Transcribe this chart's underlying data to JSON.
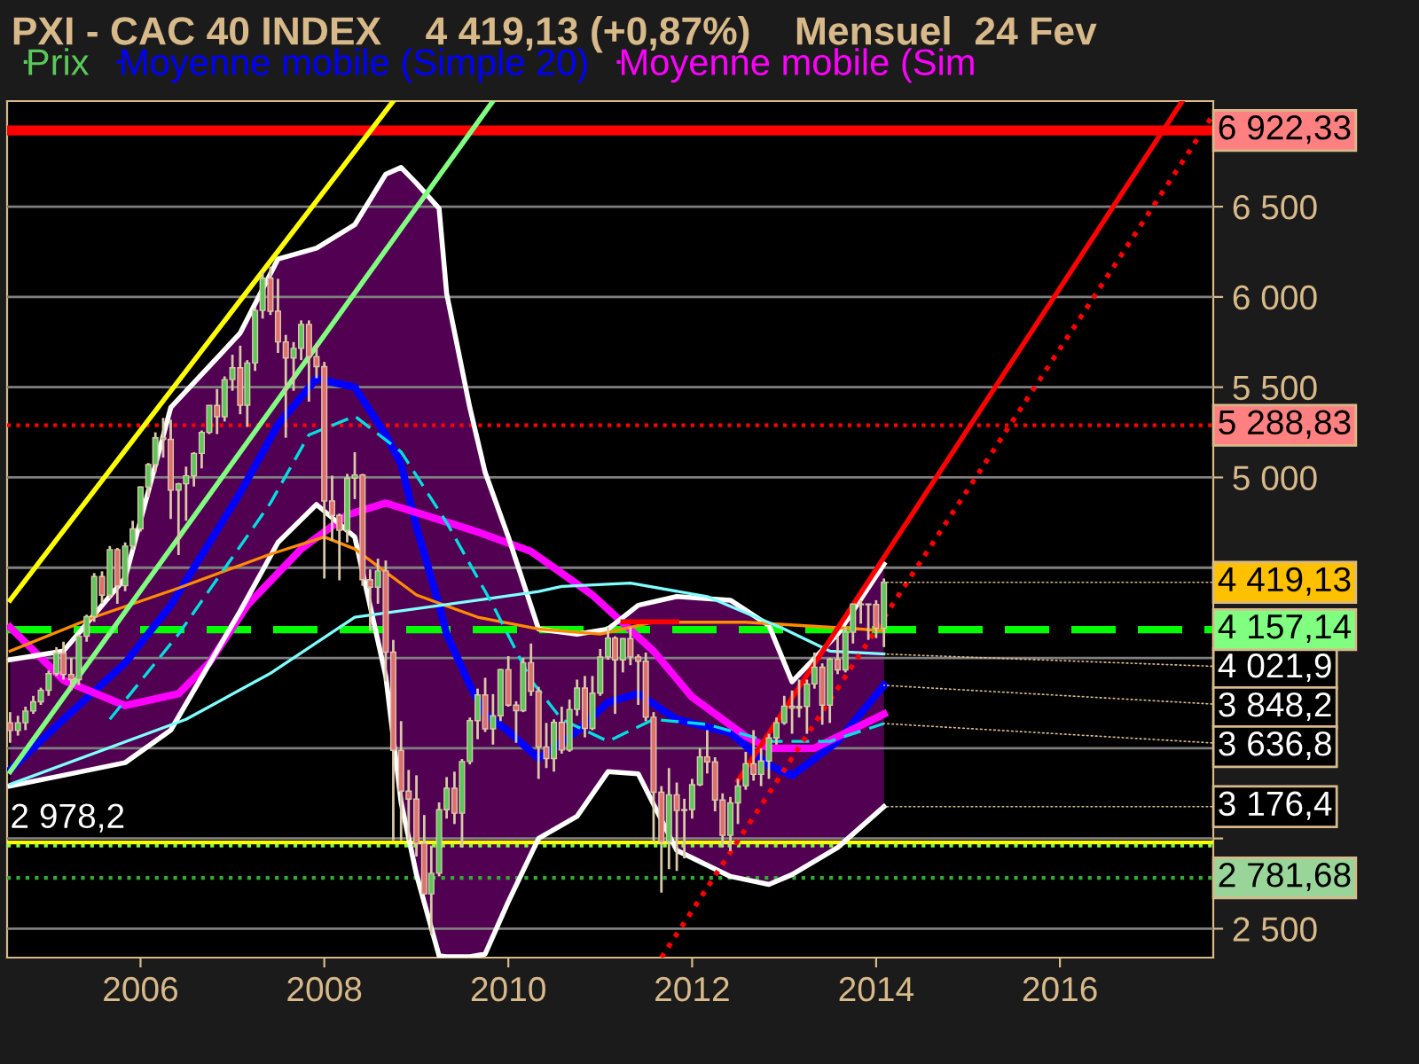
{
  "chart_data": {
    "type": "candlestick",
    "title": "PXI - CAC 40 INDEX    4 419,13 (+0,87%)    Mensuel  24 Fev",
    "xlim": [
      "2004-07-20",
      "2017-09-01"
    ],
    "xticks": [
      "2006",
      "2008",
      "2010",
      "2012",
      "2014",
      "2016"
    ],
    "ylim": [
      2340,
      7085
    ],
    "yticks": [
      {
        "value": 2500,
        "label": "2 500"
      },
      {
        "value": 3000,
        "label": null
      },
      {
        "value": 3500,
        "label": null
      },
      {
        "value": 4000,
        "label": null
      },
      {
        "value": 4500,
        "label": null
      },
      {
        "value": 5000,
        "label": "5 000"
      },
      {
        "value": 5500,
        "label": "5 500"
      },
      {
        "value": 6000,
        "label": "6 000"
      },
      {
        "value": 6500,
        "label": "6 500"
      }
    ],
    "grid": "y",
    "legend": "top left",
    "series": [
      {
        "name": "Prix",
        "x": [
          "2004-08",
          "2004-09",
          "2004-10",
          "2004-11",
          "2004-12",
          "2005-01",
          "2005-02",
          "2005-03",
          "2005-04",
          "2005-05",
          "2005-06",
          "2005-07",
          "2005-08",
          "2005-09",
          "2005-10",
          "2005-11",
          "2005-12",
          "2006-01",
          "2006-02",
          "2006-03",
          "2006-04",
          "2006-05",
          "2006-06",
          "2006-07",
          "2006-08",
          "2006-09",
          "2006-10",
          "2006-11",
          "2006-12",
          "2007-01",
          "2007-02",
          "2007-03",
          "2007-04",
          "2007-05",
          "2007-06",
          "2007-07",
          "2007-08",
          "2007-09",
          "2007-10",
          "2007-11",
          "2007-12",
          "2008-01",
          "2008-02",
          "2008-03",
          "2008-04",
          "2008-05",
          "2008-06",
          "2008-07",
          "2008-08",
          "2008-09",
          "2008-10",
          "2008-11",
          "2008-12",
          "2009-01",
          "2009-02",
          "2009-03",
          "2009-04",
          "2009-05",
          "2009-06",
          "2009-07",
          "2009-08",
          "2009-09",
          "2009-10",
          "2009-11",
          "2009-12",
          "2010-01",
          "2010-02",
          "2010-03",
          "2010-04",
          "2010-05",
          "2010-06",
          "2010-07",
          "2010-08",
          "2010-09",
          "2010-10",
          "2010-11",
          "2010-12",
          "2011-01",
          "2011-02",
          "2011-03",
          "2011-04",
          "2011-05",
          "2011-06",
          "2011-07",
          "2011-08",
          "2011-09",
          "2011-10",
          "2011-11",
          "2011-12",
          "2012-01",
          "2012-02",
          "2012-03",
          "2012-04",
          "2012-05",
          "2012-06",
          "2012-07",
          "2012-08",
          "2012-09",
          "2012-10",
          "2012-11",
          "2012-12",
          "2013-01",
          "2013-02",
          "2013-03",
          "2013-04",
          "2013-05",
          "2013-06",
          "2013-07",
          "2013-08",
          "2013-09",
          "2013-10",
          "2013-11",
          "2013-12",
          "2014-01",
          "2014-02"
        ],
        "ohlc": [
          [
            3641,
            3700,
            3530,
            3598
          ],
          [
            3598,
            3680,
            3570,
            3641
          ],
          [
            3641,
            3730,
            3600,
            3706
          ],
          [
            3706,
            3790,
            3690,
            3757
          ],
          [
            3757,
            3835,
            3740,
            3821
          ],
          [
            3821,
            3930,
            3790,
            3913
          ],
          [
            3913,
            4060,
            3900,
            4027
          ],
          [
            4027,
            4090,
            3880,
            3908
          ],
          [
            3908,
            4000,
            3820,
            3880
          ],
          [
            3880,
            4130,
            3850,
            4120
          ],
          [
            4120,
            4240,
            4090,
            4229
          ],
          [
            4229,
            4470,
            4200,
            4451
          ],
          [
            4451,
            4480,
            4300,
            4348
          ],
          [
            4348,
            4620,
            4330,
            4600
          ],
          [
            4600,
            4610,
            4300,
            4400
          ],
          [
            4400,
            4640,
            4370,
            4620
          ],
          [
            4620,
            4760,
            4600,
            4715
          ],
          [
            4715,
            4950,
            4700,
            4947
          ],
          [
            4947,
            5080,
            4890,
            5071
          ],
          [
            5071,
            5250,
            5030,
            5220
          ],
          [
            5220,
            5330,
            5110,
            5211
          ],
          [
            5211,
            5320,
            4770,
            4930
          ],
          [
            4930,
            4970,
            4570,
            4965
          ],
          [
            4965,
            5060,
            4760,
            5009
          ],
          [
            5009,
            5140,
            4950,
            5133
          ],
          [
            5133,
            5260,
            5050,
            5250
          ],
          [
            5250,
            5400,
            5240,
            5399
          ],
          [
            5399,
            5490,
            5240,
            5336
          ],
          [
            5336,
            5560,
            5310,
            5542
          ],
          [
            5542,
            5680,
            5480,
            5608
          ],
          [
            5608,
            5730,
            5350,
            5400
          ],
          [
            5400,
            5650,
            5280,
            5634
          ],
          [
            5634,
            5940,
            5590,
            5925
          ],
          [
            5925,
            6140,
            5880,
            6104
          ],
          [
            6104,
            6168,
            5900,
            5921
          ],
          [
            5921,
            6100,
            5690,
            5751
          ],
          [
            5751,
            5790,
            5220,
            5662
          ],
          [
            5662,
            5750,
            5480,
            5715
          ],
          [
            5715,
            5870,
            5650,
            5848
          ],
          [
            5848,
            5870,
            5420,
            5670
          ],
          [
            5670,
            5740,
            5550,
            5614
          ],
          [
            5614,
            5640,
            4440,
            4870
          ],
          [
            4870,
            5010,
            4650,
            4790
          ],
          [
            4790,
            4800,
            4430,
            4707
          ],
          [
            4707,
            5020,
            4640,
            4996
          ],
          [
            4996,
            5140,
            4880,
            5014
          ],
          [
            5014,
            5020,
            4400,
            4434
          ],
          [
            4434,
            4490,
            4150,
            4392
          ],
          [
            4392,
            4550,
            4300,
            4482
          ],
          [
            4482,
            4540,
            3870,
            4032
          ],
          [
            4032,
            4100,
            2990,
            3488
          ],
          [
            3488,
            3650,
            2990,
            3262
          ],
          [
            3262,
            3380,
            2990,
            3218
          ],
          [
            3218,
            3350,
            2900,
            2973
          ],
          [
            2973,
            3130,
            2690,
            2693
          ],
          [
            2693,
            2960,
            2465,
            2807
          ],
          [
            2807,
            3200,
            2790,
            3159
          ],
          [
            3159,
            3340,
            3110,
            3278
          ],
          [
            3278,
            3370,
            3080,
            3140
          ],
          [
            3140,
            3440,
            2950,
            3426
          ],
          [
            3426,
            3670,
            3410,
            3653
          ],
          [
            3653,
            3830,
            3550,
            3795
          ],
          [
            3795,
            3890,
            3590,
            3607
          ],
          [
            3607,
            3800,
            3520,
            3680
          ],
          [
            3680,
            3940,
            3650,
            3936
          ],
          [
            3936,
            4010,
            3730,
            3739
          ],
          [
            3739,
            3760,
            3530,
            3708
          ],
          [
            3708,
            4000,
            3700,
            3974
          ],
          [
            3974,
            4080,
            3790,
            3816
          ],
          [
            3816,
            3840,
            3330,
            3507
          ],
          [
            3507,
            3640,
            3390,
            3443
          ],
          [
            3443,
            3660,
            3370,
            3643
          ],
          [
            3643,
            3730,
            3470,
            3490
          ],
          [
            3490,
            3770,
            3480,
            3715
          ],
          [
            3715,
            3880,
            3680,
            3833
          ],
          [
            3833,
            3900,
            3560,
            3610
          ],
          [
            3610,
            3900,
            3600,
            3805
          ],
          [
            3805,
            4050,
            3790,
            4005
          ],
          [
            4005,
            4170,
            3990,
            4110
          ],
          [
            4110,
            4120,
            3690,
            3989
          ],
          [
            3989,
            4110,
            3920,
            4107
          ],
          [
            4107,
            4170,
            3960,
            4006
          ],
          [
            4006,
            4020,
            3740,
            3982
          ],
          [
            3982,
            4030,
            3650,
            3672
          ],
          [
            3672,
            3700,
            2980,
            3256
          ],
          [
            3256,
            3290,
            2700,
            2982
          ],
          [
            2982,
            3390,
            2830,
            3242
          ],
          [
            3242,
            3310,
            2820,
            3155
          ],
          [
            3155,
            3220,
            2890,
            3160
          ],
          [
            3160,
            3330,
            3110,
            3298
          ],
          [
            3298,
            3500,
            3290,
            3452
          ],
          [
            3452,
            3600,
            3360,
            3424
          ],
          [
            3424,
            3450,
            3150,
            3213
          ],
          [
            3213,
            3250,
            2950,
            3017
          ],
          [
            3017,
            3230,
            2930,
            3197
          ],
          [
            3197,
            3330,
            3080,
            3291
          ],
          [
            3291,
            3480,
            3270,
            3414
          ],
          [
            3414,
            3600,
            3320,
            3355
          ],
          [
            3355,
            3500,
            3290,
            3429
          ],
          [
            3429,
            3580,
            3330,
            3557
          ],
          [
            3557,
            3670,
            3520,
            3641
          ],
          [
            3641,
            3790,
            3630,
            3733
          ],
          [
            3733,
            3820,
            3580,
            3723
          ],
          [
            3723,
            3880,
            3670,
            3731
          ],
          [
            3731,
            3880,
            3580,
            3856
          ],
          [
            3856,
            4030,
            3830,
            3949
          ],
          [
            3949,
            3970,
            3630,
            3739
          ],
          [
            3739,
            4000,
            3640,
            3993
          ],
          [
            3993,
            4120,
            3910,
            3934
          ],
          [
            3934,
            4170,
            3920,
            4143
          ],
          [
            4143,
            4300,
            4080,
            4299
          ],
          [
            4299,
            4320,
            4190,
            4295
          ],
          [
            4295,
            4300,
            4100,
            4296
          ],
          [
            4296,
            4320,
            4110,
            4165
          ],
          [
            4165,
            4440,
            4060,
            4419.13
          ]
        ]
      },
      {
        "name": "Moyenne mobile (Simple 20)",
        "type": "line",
        "color": "#0000ff",
        "x": [
          "2004-08",
          "2005-03",
          "2005-11",
          "2006-05",
          "2007-02",
          "2007-07",
          "2007-12",
          "2008-05",
          "2008-09",
          "2008-11",
          "2009-01",
          "2009-04",
          "2009-05",
          "2009-08",
          "2009-10",
          "2010-01",
          "2010-05",
          "2010-10",
          "2011-02",
          "2011-06",
          "2011-11",
          "2012-06",
          "2012-11",
          "2013-02",
          "2013-08",
          "2014-02"
        ],
        "values": [
          3380,
          3660,
          3972,
          4292,
          4915,
          5292,
          5547,
          5500,
          5236,
          5075,
          4726,
          4292,
          4132,
          3849,
          3689,
          3594,
          3443,
          3594,
          3755,
          3802,
          3660,
          3585,
          3406,
          3349,
          3538,
          3848.2
        ],
        "upper": [
          3990,
          4038,
          4443,
          5387,
          5800,
          6210,
          6270,
          6400,
          6680,
          6717,
          6630,
          6490,
          6019,
          5387,
          5028,
          4670,
          4160,
          4132,
          4160,
          4292,
          4340,
          4320,
          4180,
          3868,
          4132,
          4520
        ],
        "lower": [
          3290,
          3350,
          3420,
          3600,
          4260,
          4640,
          4850,
          4670,
          3900,
          3200,
          2800,
          2350,
          2345,
          2345,
          2360,
          2650,
          3000,
          3123,
          3370,
          3358,
          2934,
          2790,
          2745,
          2800,
          2950,
          3176.4
        ]
      },
      {
        "name": "Moyenne mobile (Sim",
        "type": "line",
        "color": "#ff00ff",
        "x": [
          "2004-08",
          "2005-03",
          "2005-11",
          "2006-06",
          "2006-10",
          "2007-03",
          "2007-10",
          "2008-04",
          "2008-09",
          "2009-02",
          "2009-09",
          "2010-04",
          "2010-12",
          "2011-08",
          "2012-01",
          "2012-08",
          "2012-11",
          "2013-05",
          "2014-02"
        ],
        "values": [
          4170,
          3877,
          3736,
          3802,
          3972,
          4292,
          4604,
          4792,
          4858,
          4792,
          4698,
          4590,
          4349,
          4038,
          3783,
          3566,
          3500,
          3500,
          3689
        ]
      },
      {
        "type": "line",
        "color": "#ffffff",
        "x": [
          "2004-08",
          "2005-03",
          "2005-11",
          "2006-05",
          "2007-02",
          "2007-07",
          "2007-12",
          "2008-05",
          "2008-09",
          "2008-11",
          "2009-01",
          "2009-04",
          "2009-05",
          "2009-08",
          "2009-10",
          "2010-01",
          "2010-05",
          "2010-10",
          "2011-02",
          "2011-06",
          "2011-11",
          "2012-06",
          "2012-11",
          "2013-02",
          "2013-08",
          "2014-02"
        ],
        "values": [
          3990,
          4038,
          4443,
          5387,
          5800,
          6210,
          6270,
          6400,
          6680,
          6717,
          6630,
          6490,
          6019,
          5387,
          5028,
          4670,
          4160,
          4132,
          4160,
          4292,
          4340,
          4320,
          4180,
          3868,
          4132,
          4520
        ]
      },
      {
        "type": "line",
        "color": "#ffffff",
        "x": [
          "2004-08",
          "2005-03",
          "2005-11",
          "2006-05",
          "2007-02",
          "2007-07",
          "2007-12",
          "2008-05",
          "2008-09",
          "2008-11",
          "2009-01",
          "2009-04",
          "2009-05",
          "2009-08",
          "2009-10",
          "2010-01",
          "2010-05",
          "2010-10",
          "2011-02",
          "2011-06",
          "2011-11",
          "2012-06",
          "2012-11",
          "2013-02",
          "2013-08",
          "2014-02"
        ],
        "values": [
          3290,
          3350,
          3420,
          3600,
          4260,
          4640,
          4850,
          4670,
          3900,
          3200,
          2800,
          2350,
          2345,
          2345,
          2360,
          2650,
          3000,
          3123,
          3370,
          3358,
          2934,
          2790,
          2745,
          2800,
          2950,
          3176.4
        ]
      },
      {
        "type": "line",
        "color": "#ff8c00",
        "x": [
          "2004-08",
          "2005-07",
          "2006-06",
          "2007-06",
          "2008-01",
          "2008-05",
          "2009-01",
          "2009-09",
          "2010-05",
          "2011-01",
          "2011-08",
          "2012-08",
          "2013-11",
          "2014-02"
        ],
        "values": [
          4038,
          4226,
          4387,
          4575,
          4670,
          4604,
          4349,
          4226,
          4160,
          4132,
          4198,
          4198,
          4160,
          4150
        ]
      },
      {
        "type": "line",
        "color": "#80ffff",
        "x": [
          "2004-08",
          "2006-07",
          "2007-06",
          "2008-05",
          "2009-09",
          "2010-05",
          "2010-08",
          "2011-05",
          "2012-03",
          "2013-01",
          "2013-07",
          "2014-02"
        ],
        "values": [
          3300,
          3660,
          3915,
          4226,
          4320,
          4368,
          4396,
          4415,
          4340,
          4160,
          4038,
          4021.9
        ]
      },
      {
        "type": "line",
        "color": "#00e0e0",
        "line_style": "dashed",
        "x": [
          "2005-09",
          "2006-06",
          "2007-06",
          "2007-11",
          "2008-05",
          "2008-11",
          "2009-05",
          "2009-11",
          "2010-04",
          "2010-08",
          "2011-02",
          "2011-08",
          "2012-03",
          "2012-11",
          "2013-07",
          "2014-02"
        ],
        "values": [
          3660,
          4132,
          4858,
          5236,
          5340,
          5142,
          4750,
          4292,
          3877,
          3660,
          3538,
          3660,
          3632,
          3538,
          3538,
          3636.8
        ]
      },
      {
        "type": "line",
        "color": "#ffff00",
        "x": [
          "2004-08",
          "2008-10"
        ],
        "values": [
          4320,
          7085
        ]
      },
      {
        "type": "line",
        "color": "#80ff80",
        "x": [
          "2004-08",
          "2009-11"
        ],
        "values": [
          3370,
          7085
        ]
      },
      {
        "type": "line",
        "color": "#ff0000",
        "x": [
          "2012-07",
          "2017-05"
        ],
        "values": [
          3320,
          7085
        ]
      },
      {
        "type": "line",
        "color": "#ff0000",
        "line_style": "dotted",
        "x": [
          "2011-09",
          "2017-09"
        ],
        "values": [
          2340,
          7010
        ]
      },
      {
        "type": "line",
        "color": "#ff0000",
        "x": [
          "2011-04",
          "2011-11"
        ],
        "values": [
          4200,
          4200
        ]
      }
    ],
    "ref_lines": [
      {
        "axis": "y",
        "value": 6922.33,
        "label": "6 922,33",
        "color": "#ff0000",
        "line_style": "solid"
      },
      {
        "axis": "y",
        "value": 5288.83,
        "label": "5 288,83",
        "color": "#ff0000",
        "line_style": "dotted"
      },
      {
        "axis": "y",
        "value": 4157.14,
        "label": "4 157,14",
        "color": "#00ff00",
        "line_style": "dashed"
      },
      {
        "axis": "y",
        "value": 2978.2,
        "color": "#ffff00",
        "line_style": "solid"
      },
      {
        "axis": "y",
        "value": 2960,
        "color": "#80ff40",
        "line_style": "dotted"
      },
      {
        "axis": "y",
        "value": 2781.68,
        "label": "2 781,68",
        "color": "#33aa33",
        "line_style": "dotted"
      }
    ],
    "annotations": [
      {
        "text": "4 419,13",
        "x": "2014-02",
        "y": 4419.13
      },
      {
        "text": "4 021,9",
        "x": "2014-02",
        "y": 4021.9
      },
      {
        "text": "3 848,2",
        "x": "2014-02",
        "y": 3848.2
      },
      {
        "text": "3 636,8",
        "x": "2014-02",
        "y": 3636.8
      },
      {
        "text": "3 176,4",
        "x": "2014-02",
        "y": 3176.4
      },
      {
        "text": "2 978,2",
        "x": "2004-08",
        "y": 2978.2
      }
    ]
  }
}
